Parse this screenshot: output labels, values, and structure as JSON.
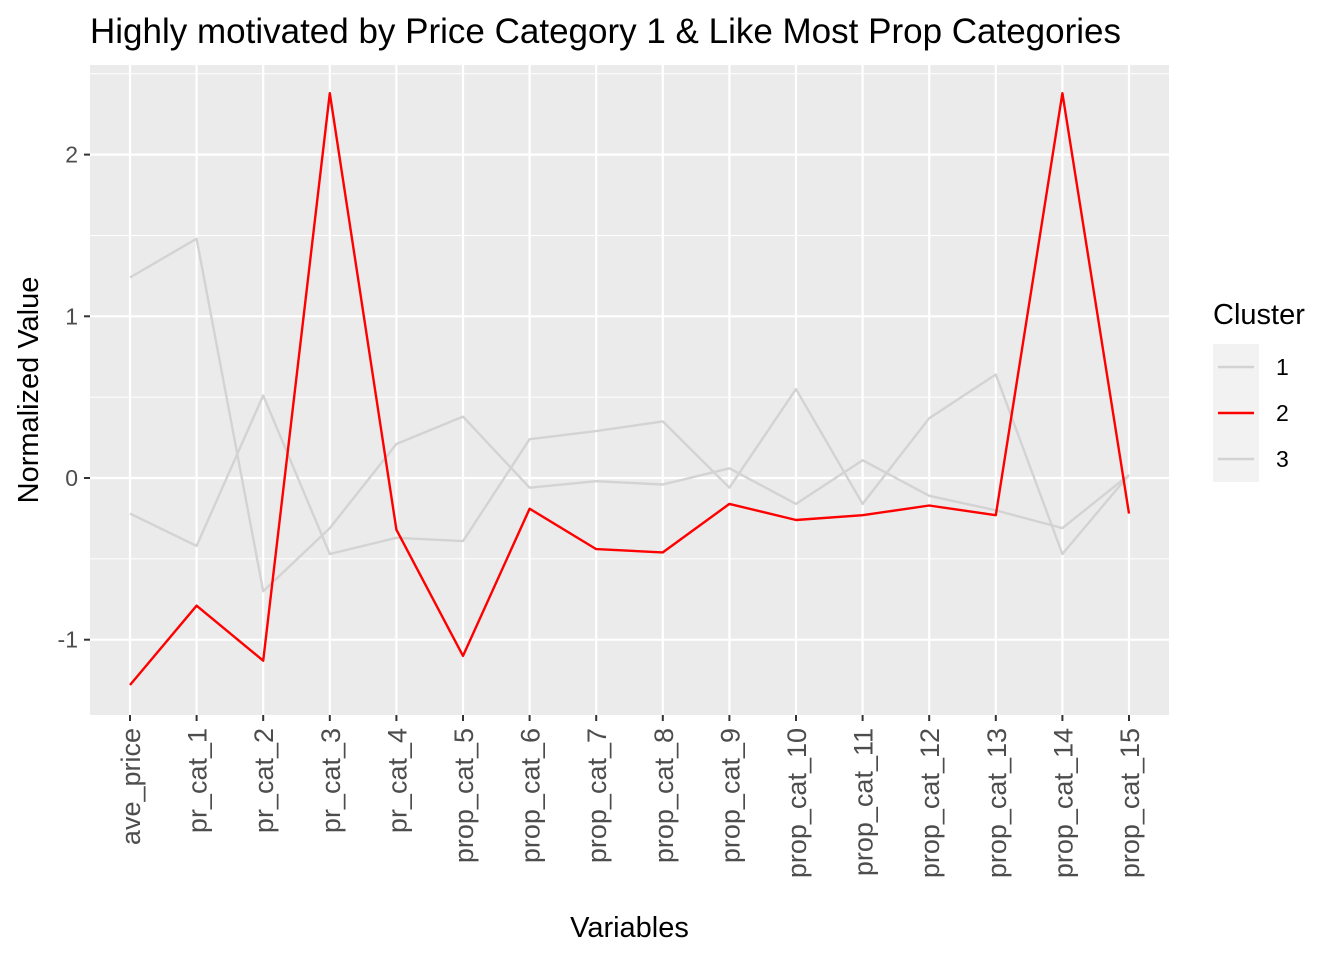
{
  "chart_data": {
    "type": "line",
    "title": "Highly motivated by Price Category 1 & Like Most Prop Categories",
    "xlabel": "Variables",
    "ylabel": "Normalized Value",
    "categories": [
      "ave_price",
      "pr_cat_1",
      "pr_cat_2",
      "pr_cat_3",
      "pr_cat_4",
      "prop_cat_5",
      "prop_cat_6",
      "prop_cat_7",
      "prop_cat_8",
      "prop_cat_9",
      "prop_cat_10",
      "prop_cat_11",
      "prop_cat_12",
      "prop_cat_13",
      "prop_cat_14",
      "prop_cat_15"
    ],
    "yticks": [
      -1,
      0,
      1,
      2
    ],
    "ylim": [
      -1.47,
      2.55
    ],
    "grid": true,
    "legend": {
      "title": "Cluster",
      "position": "right"
    },
    "series": [
      {
        "name": "1",
        "color": "#d3d3d3",
        "values": [
          1.24,
          1.48,
          -0.7,
          -0.31,
          0.21,
          0.38,
          -0.06,
          -0.02,
          -0.04,
          0.06,
          -0.16,
          0.11,
          -0.11,
          -0.2,
          -0.31,
          0.02
        ]
      },
      {
        "name": "2",
        "color": "#ff0000",
        "values": [
          -1.28,
          -0.79,
          -1.13,
          2.38,
          -0.32,
          -1.1,
          -0.19,
          -0.44,
          -0.46,
          -0.16,
          -0.26,
          -0.23,
          -0.17,
          -0.23,
          2.38,
          -0.22
        ]
      },
      {
        "name": "3",
        "color": "#d3d3d3",
        "values": [
          -0.22,
          -0.42,
          0.51,
          -0.47,
          -0.37,
          -0.39,
          0.24,
          0.29,
          0.35,
          -0.06,
          0.55,
          -0.16,
          0.37,
          0.64,
          -0.47,
          0.02
        ]
      }
    ]
  }
}
